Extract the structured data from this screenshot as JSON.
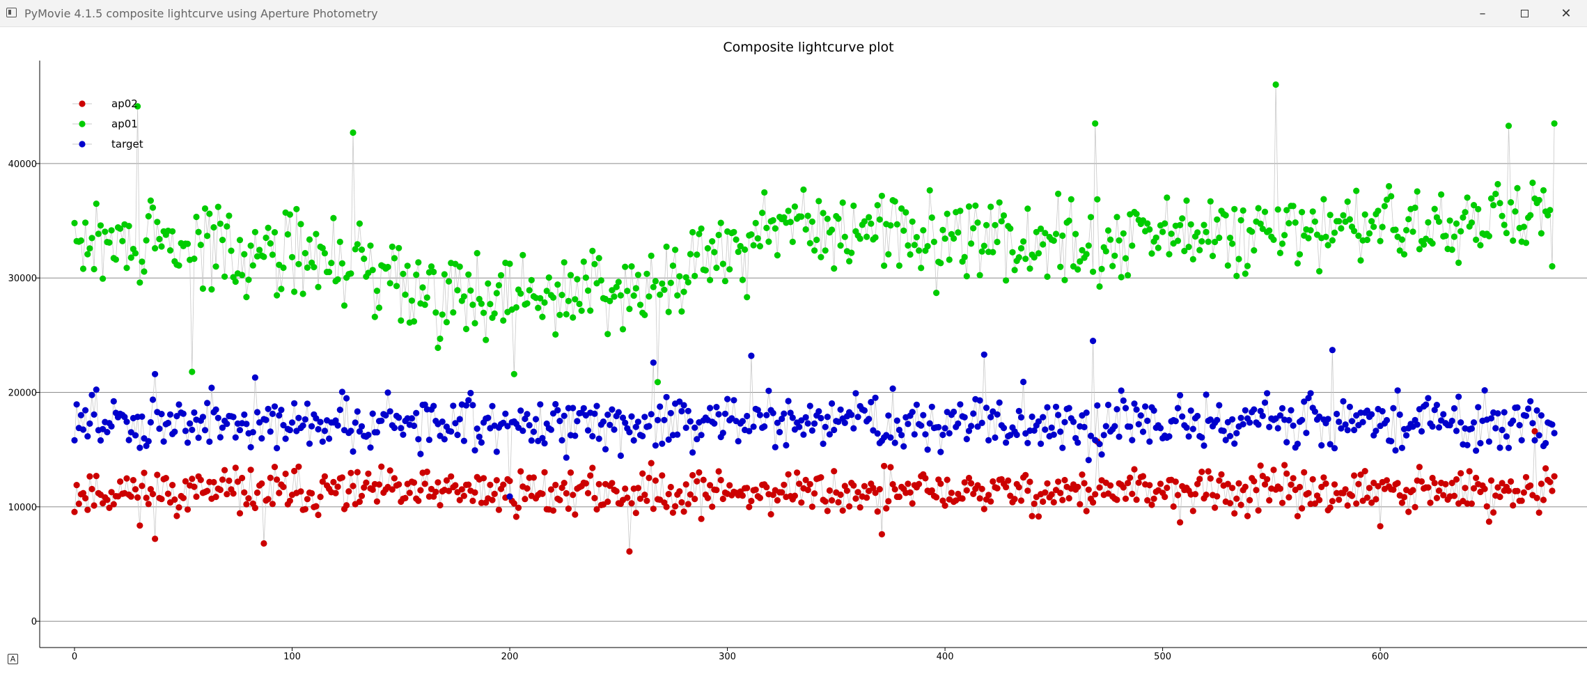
{
  "window": {
    "title": "PyMovie 4.1.5 composite lightcurve using Aperture Photometry",
    "minimize_glyph": "–",
    "close_glyph": "✕"
  },
  "corner_button_label": "A",
  "chart_data": {
    "type": "scatter",
    "title": "Composite lightcurve plot",
    "xlabel": "",
    "ylabel": "",
    "xlim": [
      -16,
      695
    ],
    "ylim": [
      -2300,
      49000
    ],
    "xticks": [
      0,
      100,
      200,
      300,
      400,
      500,
      600
    ],
    "yticks": [
      0,
      10000,
      20000,
      30000,
      40000
    ],
    "grid": "horizontal",
    "legend_position": "top-left",
    "x_range": [
      0,
      680
    ],
    "connect_points": true,
    "connector_color": "#c8c8c8",
    "series": [
      {
        "name": "ap02",
        "color": "#cc0000",
        "mean": 11300,
        "spread": 1900,
        "seed": 11,
        "features": [
          {
            "x": 37,
            "y": 7200
          },
          {
            "x": 87,
            "y": 6800
          },
          {
            "x": 255,
            "y": 6100
          },
          {
            "x": 371,
            "y": 7600
          },
          {
            "x": 470,
            "y": 15700
          },
          {
            "x": 600,
            "y": 8300
          },
          {
            "x": 650,
            "y": 8700
          },
          {
            "x": 671,
            "y": 16600
          }
        ]
      },
      {
        "name": "ap01",
        "color": "#00cc00",
        "mean": 33500,
        "spread": 3600,
        "seed": 29,
        "segments": [
          {
            "x": 0,
            "mean": 33000
          },
          {
            "x": 90,
            "mean": 32500
          },
          {
            "x": 200,
            "mean": 28000
          },
          {
            "x": 270,
            "mean": 30000
          },
          {
            "x": 330,
            "mean": 34500
          },
          {
            "x": 450,
            "mean": 33000
          },
          {
            "x": 680,
            "mean": 35000
          }
        ],
        "features": [
          {
            "x": 29,
            "y": 45000
          },
          {
            "x": 128,
            "y": 42700
          },
          {
            "x": 469,
            "y": 43500
          },
          {
            "x": 552,
            "y": 46900
          },
          {
            "x": 659,
            "y": 43300
          },
          {
            "x": 680,
            "y": 43500
          },
          {
            "x": 54,
            "y": 21800
          },
          {
            "x": 202,
            "y": 21600
          },
          {
            "x": 268,
            "y": 20900
          },
          {
            "x": 167,
            "y": 23900
          }
        ]
      },
      {
        "name": "target",
        "color": "#0000cc",
        "mean": 17400,
        "spread": 2300,
        "seed": 47,
        "features": [
          {
            "x": 37,
            "y": 21600
          },
          {
            "x": 83,
            "y": 21300
          },
          {
            "x": 266,
            "y": 22600
          },
          {
            "x": 311,
            "y": 23200
          },
          {
            "x": 418,
            "y": 23300
          },
          {
            "x": 468,
            "y": 24500
          },
          {
            "x": 578,
            "y": 23700
          },
          {
            "x": 200,
            "y": 10900
          }
        ]
      }
    ]
  }
}
